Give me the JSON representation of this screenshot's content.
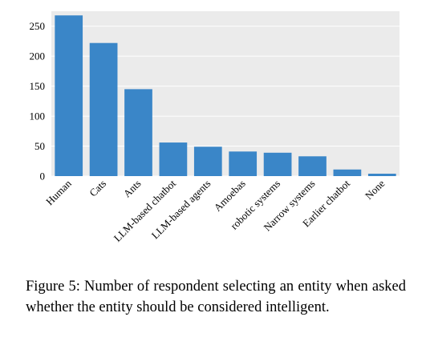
{
  "chart_data": {
    "type": "bar",
    "categories": [
      "Human",
      "Cats",
      "Ants",
      "LLM-based chatbot",
      "LLM-based agents",
      "Amoebas",
      "robotic systems",
      "Narrow systems",
      "Earlier chatbot",
      "None"
    ],
    "values": [
      268,
      222,
      145,
      56,
      49,
      41,
      39,
      33,
      11,
      4
    ],
    "title": "",
    "xlabel": "",
    "ylabel": "",
    "ylim": [
      0,
      275
    ],
    "yticks": [
      0,
      50,
      100,
      150,
      200,
      250
    ],
    "grid": true,
    "bar_color": "#3a86c8",
    "background_color": "#ebebeb",
    "grid_color": "#ffffff"
  },
  "caption": "Figure 5: Number of respondent selecting an entity when asked whether the entity should be considered intelligent."
}
